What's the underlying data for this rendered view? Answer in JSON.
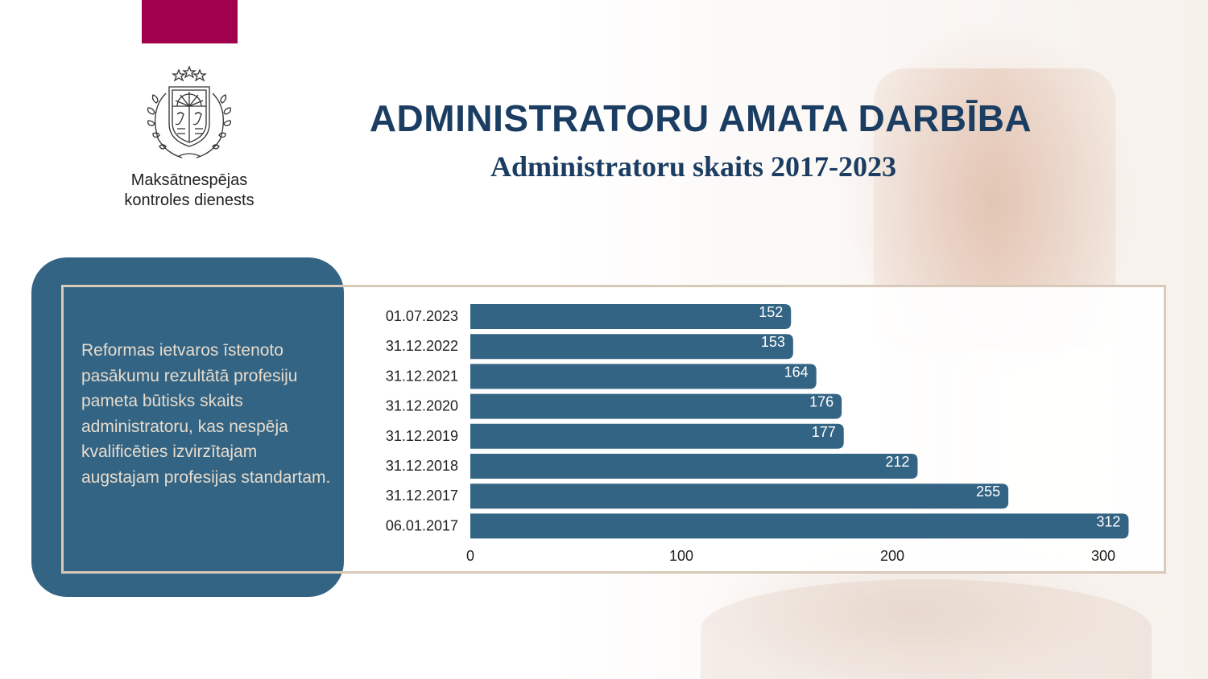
{
  "organization": {
    "name_line1": "Maksātnespējas",
    "name_line2": "kontroles dienests"
  },
  "page": {
    "title": "ADMINISTRATORU AMATA DARBĪBA",
    "subtitle": "Administratoru skaits 2017-2023"
  },
  "description": "Reformas ietvaros īstenoto pasākumu rezultātā profesiju pameta būtisks skaits administratoru, kas nespēja kvalificēties izvirzītajam augstajam profesijas standartam.",
  "colors": {
    "accent": "#a0004e",
    "title": "#1b3d62",
    "panel": "#336484",
    "bar": "#336484",
    "frame": "#d9c9b8",
    "description_text": "#e7dccd"
  },
  "chart_data": {
    "type": "bar",
    "orientation": "horizontal",
    "categories": [
      "01.07.2023",
      "31.12.2022",
      "31.12.2021",
      "31.12.2020",
      "31.12.2019",
      "31.12.2018",
      "31.12.2017",
      "06.01.2017"
    ],
    "values": [
      152,
      153,
      164,
      176,
      177,
      212,
      255,
      312
    ],
    "xlim": [
      0,
      300
    ],
    "xticks": [
      0,
      100,
      200,
      300
    ],
    "data_labels": true,
    "grid": false,
    "legend": "none"
  }
}
